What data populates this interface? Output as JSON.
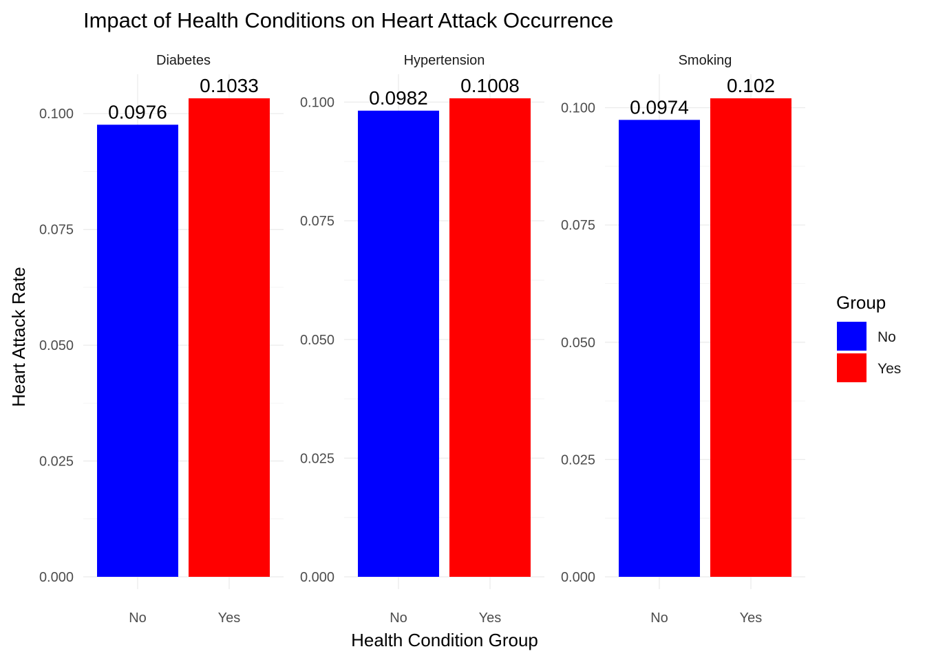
{
  "chart_data": {
    "type": "bar",
    "title": "Impact of Health Conditions on Heart Attack Occurrence",
    "xlabel": "Health Condition Group",
    "ylabel": "Heart Attack Rate",
    "categories": [
      "No",
      "Yes"
    ],
    "facet_scales": "free_y",
    "grid": true,
    "legend": {
      "title": "Group",
      "position": "right",
      "entries": [
        {
          "label": "No",
          "color": "#0000FF"
        },
        {
          "label": "Yes",
          "color": "#FF0000"
        }
      ]
    },
    "colors": {
      "No": "#0000FF",
      "Yes": "#FF0000"
    },
    "panels": [
      {
        "name": "Diabetes",
        "values": [
          0.0976,
          0.1033
        ],
        "value_labels": [
          "0.0976",
          "0.1033"
        ],
        "ylim": [
          0,
          0.1033
        ],
        "y_ticks": [
          0,
          0.025,
          0.05,
          0.075,
          0.1
        ],
        "y_tick_labels": [
          "0.000",
          "0.025",
          "0.050",
          "0.075",
          "0.100"
        ]
      },
      {
        "name": "Hypertension",
        "values": [
          0.0982,
          0.1008
        ],
        "value_labels": [
          "0.0982",
          "0.1008"
        ],
        "ylim": [
          0,
          0.1008
        ],
        "y_ticks": [
          0,
          0.025,
          0.05,
          0.075,
          0.1
        ],
        "y_tick_labels": [
          "0.000",
          "0.025",
          "0.050",
          "0.075",
          "0.100"
        ]
      },
      {
        "name": "Smoking",
        "values": [
          0.0974,
          0.102
        ],
        "value_labels": [
          "0.0974",
          "0.102"
        ],
        "ylim": [
          0,
          0.102
        ],
        "y_ticks": [
          0,
          0.025,
          0.05,
          0.075,
          0.1
        ],
        "y_tick_labels": [
          "0.000",
          "0.025",
          "0.050",
          "0.075",
          "0.100"
        ]
      }
    ]
  }
}
